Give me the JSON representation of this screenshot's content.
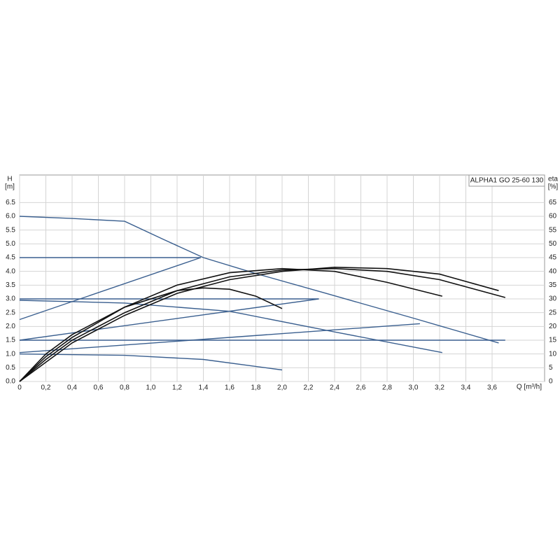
{
  "chart_data": {
    "type": "line",
    "annotation": "ALPHA1 GO 25-60 130",
    "y_label": [
      "H",
      "[m]"
    ],
    "y2_label": [
      "eta",
      "[%]"
    ],
    "x_label": "Q [m³/h]",
    "xlim": [
      0,
      4.0
    ],
    "ylim": [
      0,
      7.5
    ],
    "y2lim": [
      0,
      75
    ],
    "grid": true,
    "xticks": [
      0,
      {
        "value": 0.2,
        "label": "0,2"
      },
      {
        "value": 0.4,
        "label": "0,4"
      },
      {
        "value": 0.6,
        "label": "0,6"
      },
      {
        "value": 0.8,
        "label": "0,8"
      },
      {
        "value": 1.0,
        "label": "1,0"
      },
      {
        "value": 1.2,
        "label": "1,2"
      },
      {
        "value": 1.4,
        "label": "1,4"
      },
      {
        "value": 1.6,
        "label": "1,6"
      },
      {
        "value": 1.8,
        "label": "1,8"
      },
      {
        "value": 2.0,
        "label": "2,0"
      },
      {
        "value": 2.2,
        "label": "2,2"
      },
      {
        "value": 2.4,
        "label": "2,4"
      },
      {
        "value": 2.6,
        "label": "2,6"
      },
      {
        "value": 2.8,
        "label": "2,8"
      },
      {
        "value": 3.0,
        "label": "3,0"
      },
      {
        "value": 3.2,
        "label": "3,2"
      },
      {
        "value": 3.4,
        "label": "3,4"
      },
      {
        "value": 3.6,
        "label": "3,6"
      }
    ],
    "yticks": [
      {
        "value": 0,
        "label": "0.0"
      },
      0.5,
      {
        "value": 1,
        "label": "1.0"
      },
      1.5,
      {
        "value": 2,
        "label": "2.0"
      },
      2.5,
      {
        "value": 3,
        "label": "3.0"
      },
      3.5,
      {
        "value": 4,
        "label": "4.0"
      },
      4.5,
      {
        "value": 5,
        "label": "5.0"
      },
      5.5,
      {
        "value": 6,
        "label": "6.0"
      },
      6.5
    ],
    "y2ticks": [
      0,
      5,
      10,
      15,
      20,
      25,
      30,
      35,
      40,
      45,
      50,
      55,
      60,
      65
    ],
    "series": [
      {
        "color": "#3a5f8f",
        "x": [
          0,
          0.4,
          0.8,
          1.1,
          1.4,
          1.8,
          2.3,
          3.0,
          3.65
        ],
        "values": [
          6.0,
          5.92,
          5.82,
          5.15,
          4.5,
          3.92,
          3.25,
          2.3,
          1.4
        ]
      },
      {
        "color": "#3a5f8f",
        "x": [
          0,
          1.38
        ],
        "values": [
          4.5,
          4.5
        ]
      },
      {
        "color": "#3a5f8f",
        "x": [
          0,
          1.38
        ],
        "values": [
          2.25,
          4.5
        ]
      },
      {
        "color": "#3a5f8f",
        "x": [
          0,
          2.28
        ],
        "values": [
          3.0,
          3.0
        ]
      },
      {
        "color": "#3a5f8f",
        "x": [
          0,
          2.28
        ],
        "values": [
          1.5,
          3.0
        ]
      },
      {
        "color": "#3a5f8f",
        "x": [
          0,
          3.7
        ],
        "values": [
          1.5,
          1.5
        ]
      },
      {
        "color": "#3a5f8f",
        "x": [
          0,
          3.05
        ],
        "values": [
          1.05,
          2.1
        ]
      },
      {
        "color": "#3a5f8f",
        "x": [
          0,
          0.8,
          1.6,
          2.4,
          3.22
        ],
        "values": [
          2.95,
          2.85,
          2.55,
          1.8,
          1.05
        ]
      },
      {
        "color": "#3a5f8f",
        "x": [
          0,
          0.8,
          1.4,
          2.0
        ],
        "values": [
          1.0,
          0.95,
          0.8,
          0.42
        ]
      },
      {
        "color": "#111111",
        "axis": "y2",
        "x": [
          0,
          0.2,
          0.4,
          0.8,
          1.2,
          1.4,
          1.6,
          1.8,
          2.0
        ],
        "values": [
          0,
          10,
          17,
          27,
          33,
          34,
          33.5,
          31,
          26.5
        ]
      },
      {
        "color": "#111111",
        "axis": "y2",
        "x": [
          0,
          0.2,
          0.4,
          0.8,
          1.2,
          1.6,
          2.0,
          2.4,
          2.8,
          3.22
        ],
        "values": [
          0,
          9,
          16,
          27,
          35,
          39.5,
          41,
          40,
          36,
          31
        ]
      },
      {
        "color": "#111111",
        "axis": "y2",
        "x": [
          0,
          0.2,
          0.4,
          0.8,
          1.2,
          1.6,
          2.0,
          2.4,
          2.8,
          3.2,
          3.7
        ],
        "values": [
          0,
          8,
          15,
          25,
          33,
          38,
          40.5,
          41,
          40,
          37,
          30.5
        ]
      },
      {
        "color": "#111111",
        "axis": "y2",
        "x": [
          0,
          0.2,
          0.4,
          0.8,
          1.2,
          1.6,
          2.0,
          2.4,
          2.8,
          3.2,
          3.65
        ],
        "values": [
          0,
          7,
          14,
          24,
          32,
          37,
          40,
          41.5,
          41,
          39,
          33
        ]
      }
    ]
  }
}
